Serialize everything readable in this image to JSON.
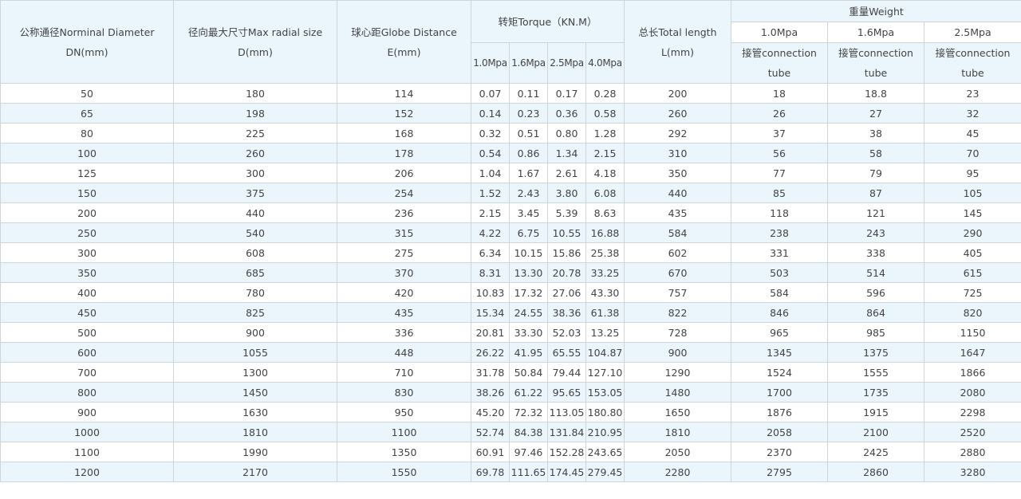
{
  "headers": {
    "dn": [
      "公称通径Norminal Diameter",
      "DN(mm)"
    ],
    "d": [
      "径向最大尺寸Max radial size",
      "D(mm)"
    ],
    "e": [
      "球心距Globe Distance",
      "E(mm)"
    ],
    "torque": "转矩Torque（KN.M）",
    "torque_sub": [
      "1.0Mpa",
      "1.6Mpa",
      "2.5Mpa",
      "4.0Mpa"
    ],
    "l": [
      "总长Total length",
      "L(mm)"
    ],
    "weight": "重量Weight",
    "weight_sub": [
      "1.0Mpa",
      "1.6Mpa",
      "2.5Mpa"
    ],
    "weight_conn": [
      "接管connection",
      "tube"
    ]
  },
  "rows": [
    [
      "50",
      "180",
      "114",
      "0.07",
      "0.11",
      "0.17",
      "0.28",
      "200",
      "18",
      "18.8",
      "23"
    ],
    [
      "65",
      "198",
      "152",
      "0.14",
      "0.23",
      "0.36",
      "0.58",
      "260",
      "26",
      "27",
      "32"
    ],
    [
      "80",
      "225",
      "168",
      "0.32",
      "0.51",
      "0.80",
      "1.28",
      "292",
      "37",
      "38",
      "45"
    ],
    [
      "100",
      "260",
      "178",
      "0.54",
      "0.86",
      "1.34",
      "2.15",
      "310",
      "56",
      "58",
      "70"
    ],
    [
      "125",
      "300",
      "206",
      "1.04",
      "1.67",
      "2.61",
      "4.18",
      "350",
      "77",
      "79",
      "95"
    ],
    [
      "150",
      "375",
      "254",
      "1.52",
      "2.43",
      "3.80",
      "6.08",
      "440",
      "85",
      "87",
      "105"
    ],
    [
      "200",
      "440",
      "236",
      "2.15",
      "3.45",
      "5.39",
      "8.63",
      "435",
      "118",
      "121",
      "145"
    ],
    [
      "250",
      "540",
      "315",
      "4.22",
      "6.75",
      "10.55",
      "16.88",
      "584",
      "238",
      "243",
      "290"
    ],
    [
      "300",
      "608",
      "275",
      "6.34",
      "10.15",
      "15.86",
      "25.38",
      "602",
      "331",
      "338",
      "405"
    ],
    [
      "350",
      "685",
      "370",
      "8.31",
      "13.30",
      "20.78",
      "33.25",
      "670",
      "503",
      "514",
      "615"
    ],
    [
      "400",
      "780",
      "420",
      "10.83",
      "17.32",
      "27.06",
      "43.30",
      "757",
      "584",
      "596",
      "725"
    ],
    [
      "450",
      "825",
      "435",
      "15.34",
      "24.55",
      "38.36",
      "61.38",
      "822",
      "846",
      "864",
      "820"
    ],
    [
      "500",
      "900",
      "336",
      "20.81",
      "33.30",
      "52.03",
      "13.25",
      "728",
      "965",
      "985",
      "1150"
    ],
    [
      "600",
      "1055",
      "448",
      "26.22",
      "41.95",
      "65.55",
      "104.87",
      "900",
      "1345",
      "1375",
      "1647"
    ],
    [
      "700",
      "1300",
      "710",
      "31.78",
      "50.84",
      "79.44",
      "127.10",
      "1290",
      "1524",
      "1555",
      "1866"
    ],
    [
      "800",
      "1450",
      "830",
      "38.26",
      "61.22",
      "95.65",
      "153.05",
      "1480",
      "1700",
      "1735",
      "2080"
    ],
    [
      "900",
      "1630",
      "950",
      "45.20",
      "72.32",
      "113.05",
      "180.80",
      "1650",
      "1876",
      "1915",
      "2298"
    ],
    [
      "1000",
      "1810",
      "1100",
      "52.74",
      "84.38",
      "131.84",
      "210.95",
      "1810",
      "2058",
      "2100",
      "2520"
    ],
    [
      "1100",
      "1990",
      "1350",
      "60.91",
      "97.46",
      "152.28",
      "243.65",
      "2050",
      "2370",
      "2425",
      "2880"
    ],
    [
      "1200",
      "2170",
      "1550",
      "69.78",
      "111.65",
      "174.45",
      "279.45",
      "2280",
      "2795",
      "2860",
      "3280"
    ]
  ]
}
